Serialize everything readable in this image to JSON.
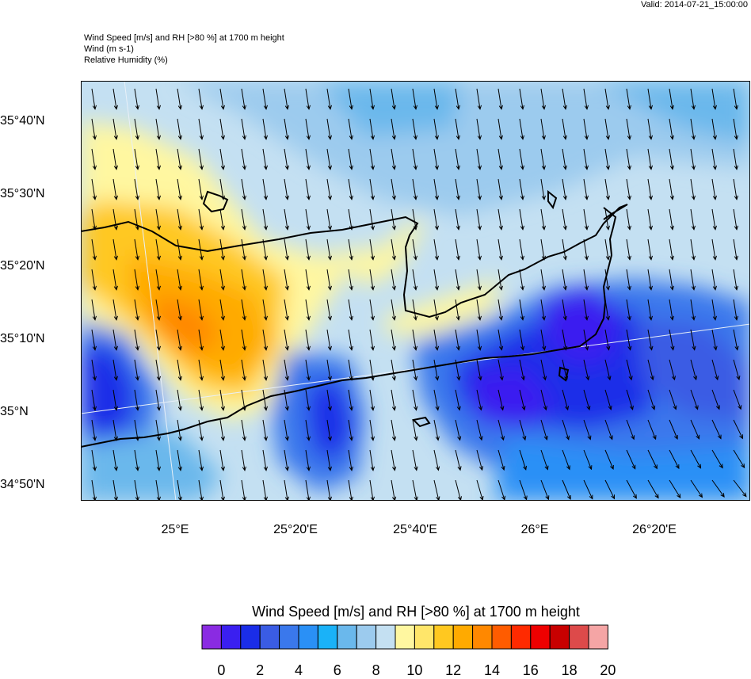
{
  "valid_time": "Valid: 2014-07-21_15:00:00",
  "header": {
    "line1": "Wind Speed [m/s] and RH [>80 %] at 1700 m height",
    "line2": "Wind   (m s-1)",
    "line3": "Relative Humidity   (%)"
  },
  "lat_labels": [
    "35°40'N",
    "35°30'N",
    "35°20'N",
    "35°10'N",
    "35°N",
    "34°50'N"
  ],
  "lon_labels": [
    "25°E",
    "25°20'E",
    "25°40'E",
    "26°E",
    "26°20'E"
  ],
  "colorbar": {
    "title": "Wind Speed [m/s] and RH [>80 %] at 1700 m height",
    "colors": [
      "#8a2be2",
      "#3a1ff0",
      "#1a2de8",
      "#3a5ce4",
      "#3a78ec",
      "#2a90f6",
      "#1ab2f8",
      "#6ab8ec",
      "#9ccbee",
      "#c4e0f2",
      "#fff7a0",
      "#ffe66a",
      "#ffc820",
      "#ffaa00",
      "#ff8800",
      "#ff5c00",
      "#ff2a00",
      "#ee0000",
      "#c80000",
      "#dd4a4a",
      "#f5a5a5"
    ],
    "tick_labels": [
      "0",
      "2",
      "4",
      "6",
      "8",
      "10",
      "12",
      "14",
      "16",
      "18",
      "20"
    ]
  },
  "fields": {
    "background_color": "#c4e0f2",
    "regions": [
      {
        "name": "low-wind-west",
        "level": 2,
        "color": "#3a5ce4"
      },
      {
        "name": "high-wind-core",
        "level": 15,
        "color": "#ff8800"
      },
      {
        "name": "low-wind-east",
        "level": 1,
        "color": "#1a2de8"
      }
    ]
  }
}
